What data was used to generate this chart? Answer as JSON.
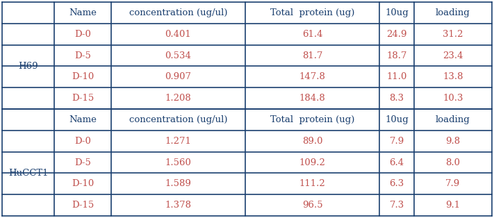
{
  "background_color": "#ffffff",
  "header_text_color": "#1a3f6f",
  "data_text_color": "#c0504d",
  "group_label_color": "#1a3f6f",
  "border_color": "#1a3f6f",
  "table1": {
    "group": "H69",
    "headers": [
      "Name",
      "concentration (ug/ul)",
      "Total  protein (ug)",
      "10ug",
      "loading"
    ],
    "rows": [
      [
        "D-0",
        "0.401",
        "61.4",
        "24.9",
        "31.2"
      ],
      [
        "D-5",
        "0.534",
        "81.7",
        "18.7",
        "23.4"
      ],
      [
        "D-10",
        "0.907",
        "147.8",
        "11.0",
        "13.8"
      ],
      [
        "D-15",
        "1.208",
        "184.8",
        "8.3",
        "10.3"
      ]
    ]
  },
  "table2": {
    "group": "HuCCT1",
    "headers": [
      "Name",
      "concentration (ug/ul)",
      "Total  protein (ug)",
      "10ug",
      "loading"
    ],
    "rows": [
      [
        "D-0",
        "1.271",
        "89.0",
        "7.9",
        "9.8"
      ],
      [
        "D-5",
        "1.560",
        "109.2",
        "6.4",
        "8.0"
      ],
      [
        "D-10",
        "1.589",
        "111.2",
        "6.3",
        "7.9"
      ],
      [
        "D-15",
        "1.378",
        "96.5",
        "7.3",
        "9.1"
      ]
    ]
  },
  "font_size": 9.5,
  "header_font_size": 9.5
}
